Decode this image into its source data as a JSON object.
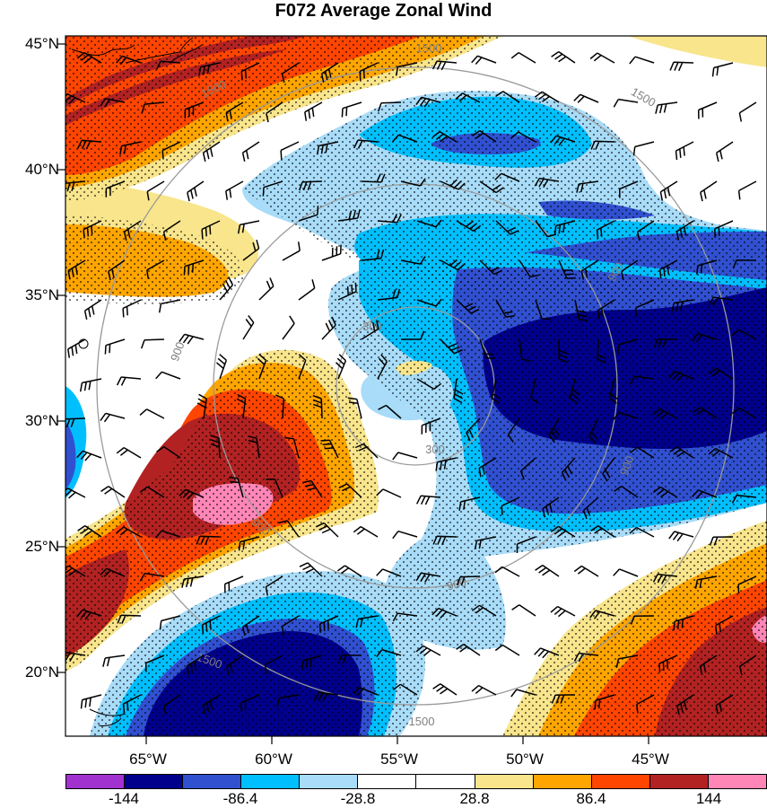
{
  "title": "F072 Average Zonal Wind",
  "lat_labels": [
    "45°N",
    "40°N",
    "35°N",
    "30°N",
    "25°N",
    "20°N"
  ],
  "lon_labels": [
    "65°W",
    "60°W",
    "55°W",
    "50°W",
    "45°W"
  ],
  "contour_labels": [
    "300",
    "300",
    "900",
    "900",
    "900",
    "900",
    "900",
    "1500",
    "1500",
    "1500",
    "1500",
    "1500"
  ],
  "colorbar": {
    "colors": [
      "#a232d0",
      "#00008c",
      "#3050d0",
      "#00bfff",
      "#a8dcf8",
      "#ffffff",
      "#ffffff",
      "#f8e58c",
      "#ffa500",
      "#ff4500",
      "#b22222",
      "#ff86b6"
    ],
    "tick_labels": [
      "-144",
      "-86.4",
      "-28.8",
      "28.8",
      "86.4",
      "144"
    ]
  },
  "colors": {
    "strong_positive": "#b22222",
    "positive": "#ff4500",
    "weak_positive": "#ffa500",
    "light_positive": "#f8e58c",
    "peak_positive": "#ff86b6",
    "light_negative": "#a8dcf8",
    "weak_negative": "#00bfff",
    "negative": "#3050d0",
    "strong_negative": "#00008c",
    "range_ring": "#9a9a9a"
  }
}
